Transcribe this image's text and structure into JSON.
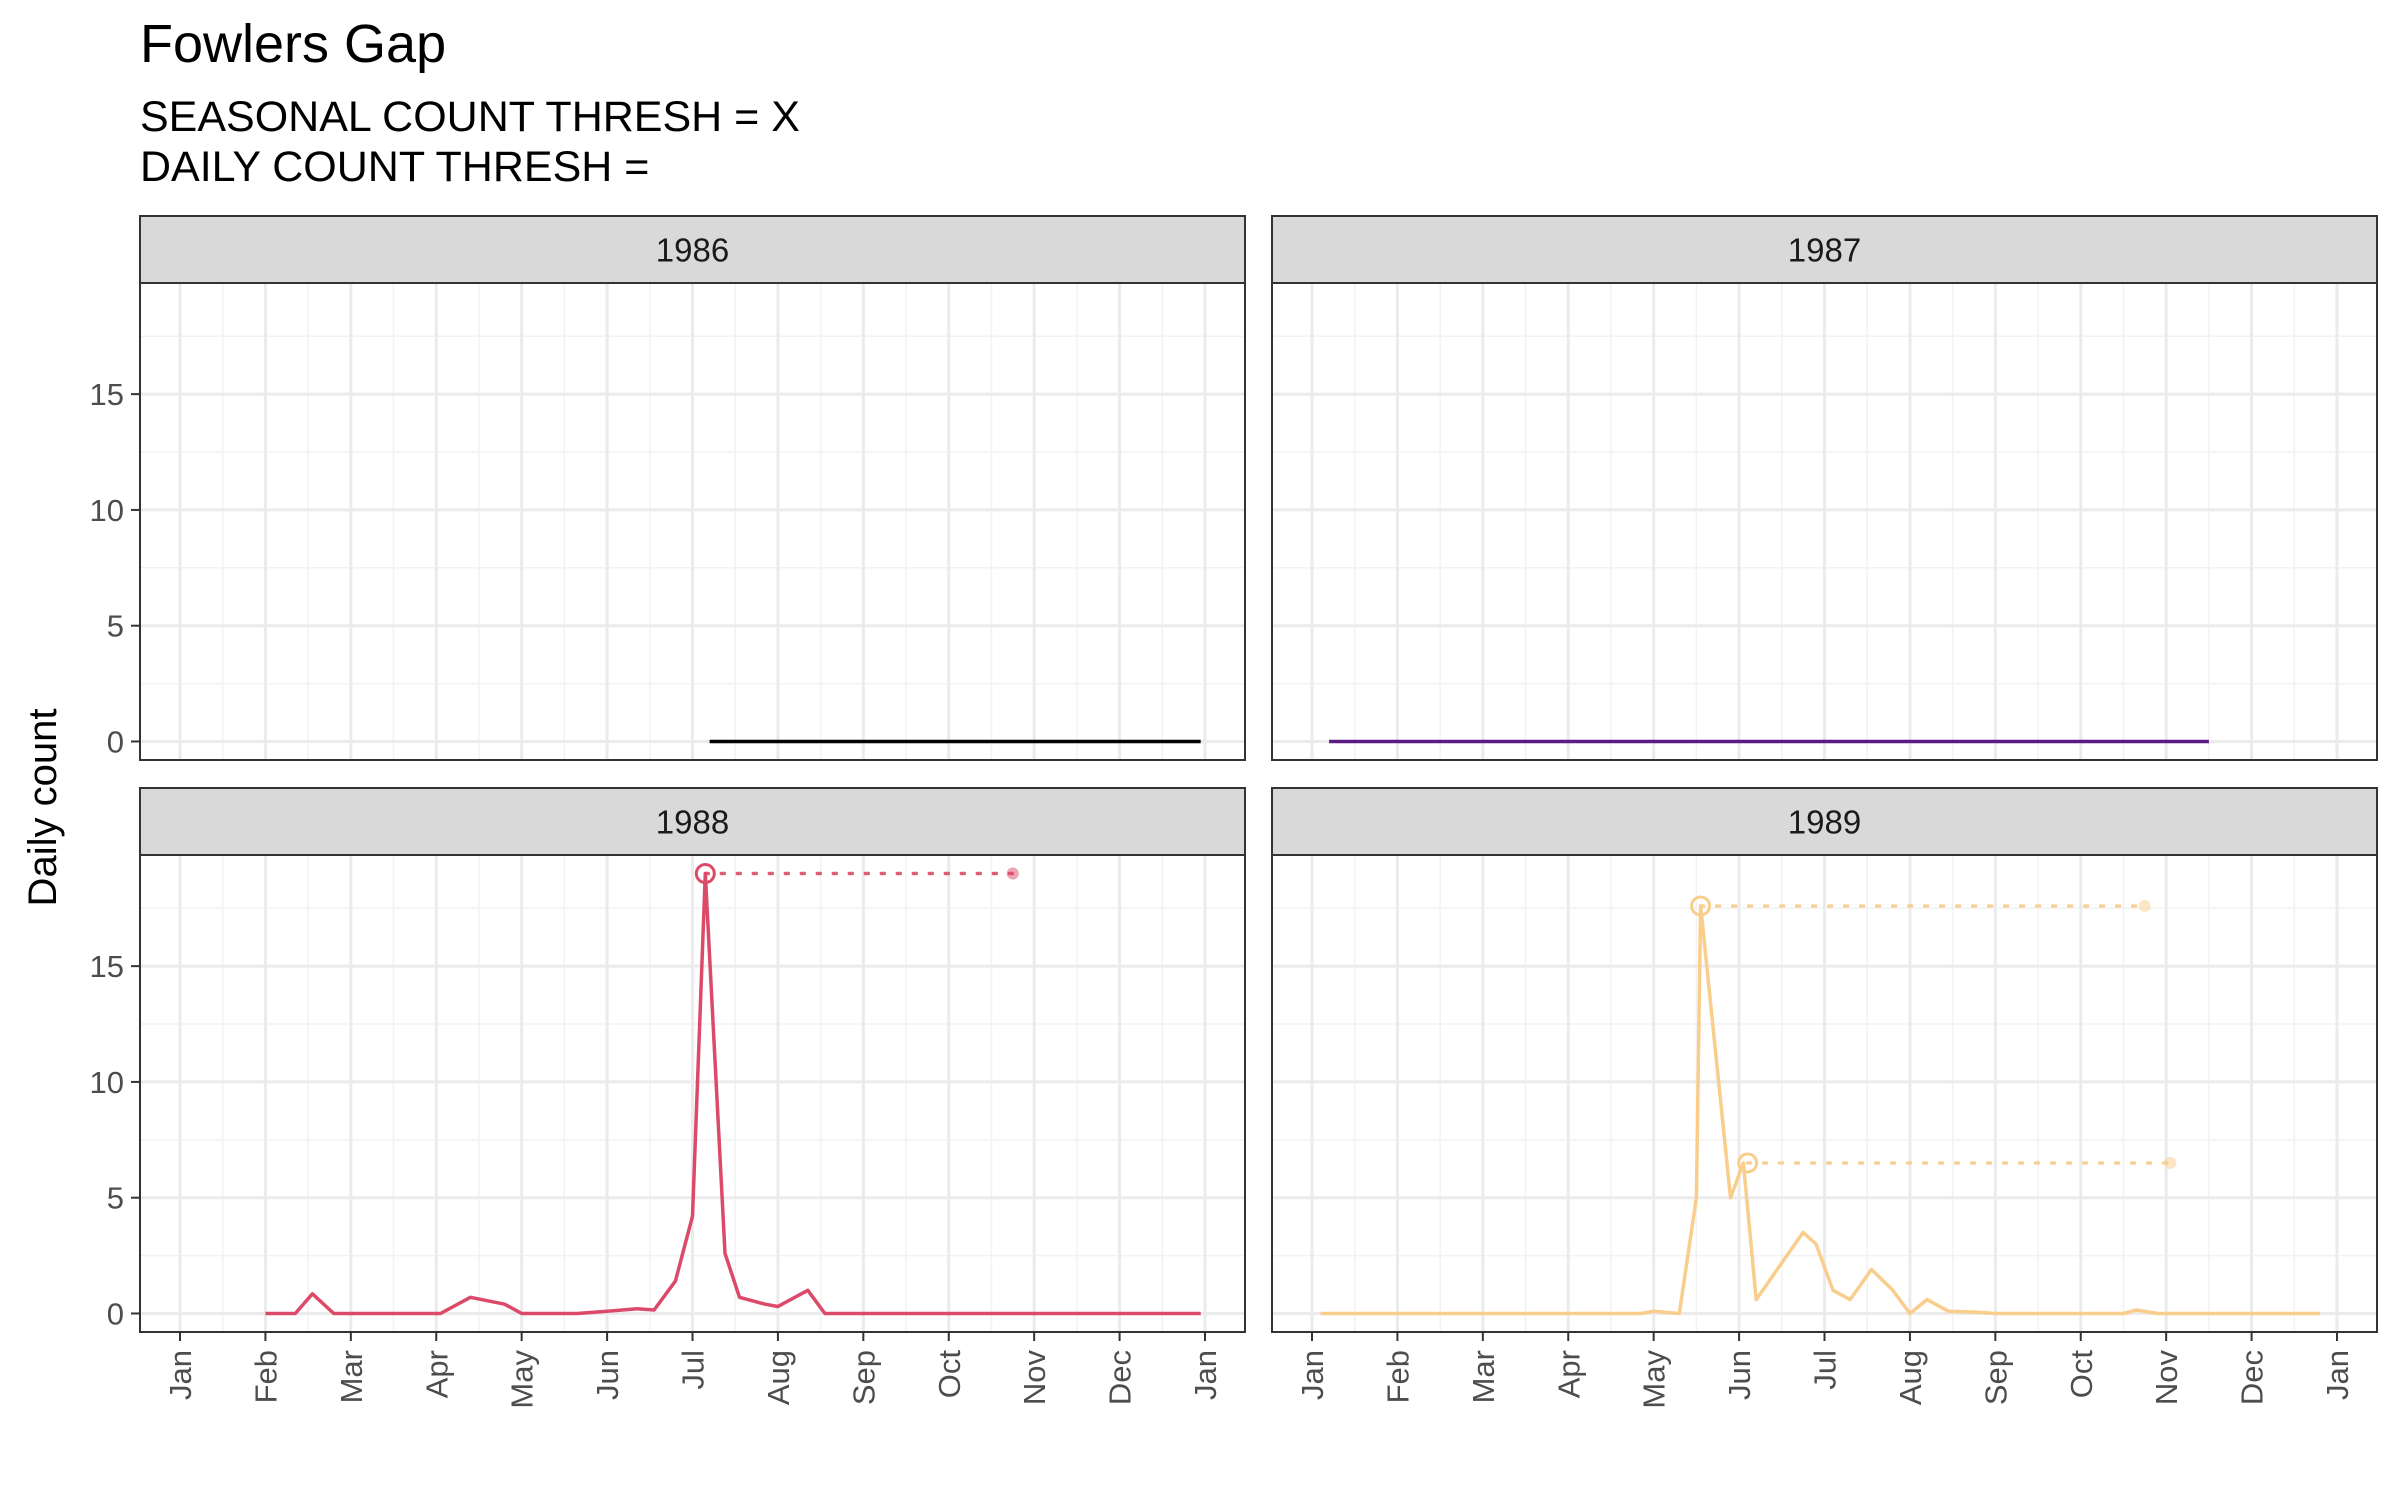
{
  "header": {
    "title": "Fowlers Gap",
    "subtitle_line1": "SEASONAL COUNT THRESH = X",
    "subtitle_line2": "DAILY COUNT THRESH ="
  },
  "chart_data": {
    "type": "line",
    "ylabel": "Daily count",
    "xlabel": "",
    "ylim": [
      -0.8,
      19.8
    ],
    "y_ticks": [
      0,
      5,
      10,
      15
    ],
    "x_ticks": [
      "Jan",
      "Feb",
      "Mar",
      "Apr",
      "May",
      "Jun",
      "Jul",
      "Aug",
      "Sep",
      "Oct",
      "Nov",
      "Dec",
      "Jan"
    ],
    "grid": true,
    "facets": [
      {
        "label": "1986",
        "color": "#000000",
        "points": [
          [
            6.2,
            0
          ],
          [
            11.95,
            0
          ]
        ],
        "peaks": []
      },
      {
        "label": "1987",
        "color": "#5b1a85",
        "points": [
          [
            0.2,
            0
          ],
          [
            10.5,
            0
          ]
        ],
        "peaks": []
      },
      {
        "label": "1988",
        "color": "#dc4a6a",
        "points": [
          [
            1.0,
            0
          ],
          [
            1.35,
            0
          ],
          [
            1.55,
            0.85
          ],
          [
            1.8,
            0
          ],
          [
            2.15,
            0
          ],
          [
            2.5,
            0
          ],
          [
            2.85,
            0
          ],
          [
            3.05,
            0
          ],
          [
            3.4,
            0.7
          ],
          [
            3.8,
            0.4
          ],
          [
            4.0,
            0
          ],
          [
            4.35,
            0
          ],
          [
            4.65,
            0
          ],
          [
            5.0,
            0.1
          ],
          [
            5.35,
            0.2
          ],
          [
            5.55,
            0.15
          ],
          [
            5.8,
            1.4
          ],
          [
            6.0,
            4.2
          ],
          [
            6.15,
            19.0
          ],
          [
            6.38,
            2.6
          ],
          [
            6.55,
            0.7
          ],
          [
            6.85,
            0.4
          ],
          [
            7.0,
            0.3
          ],
          [
            7.35,
            1.0
          ],
          [
            7.55,
            0
          ],
          [
            8.0,
            0
          ],
          [
            9.0,
            0
          ],
          [
            10.0,
            0
          ],
          [
            11.0,
            0
          ],
          [
            11.95,
            0
          ]
        ],
        "peaks": [
          {
            "x": 6.15,
            "y": 19.0,
            "end_x": 9.75
          }
        ]
      },
      {
        "label": "1989",
        "color": "#f9cd8c",
        "points": [
          [
            0.1,
            0
          ],
          [
            1.0,
            0
          ],
          [
            2.0,
            0
          ],
          [
            3.0,
            0
          ],
          [
            3.85,
            0
          ],
          [
            4.0,
            0.1
          ],
          [
            4.3,
            0
          ],
          [
            4.5,
            5.0
          ],
          [
            4.55,
            17.6
          ],
          [
            4.9,
            5.0
          ],
          [
            5.05,
            6.5
          ],
          [
            5.2,
            0.6
          ],
          [
            5.75,
            3.5
          ],
          [
            5.9,
            3.0
          ],
          [
            6.1,
            1.0
          ],
          [
            6.3,
            0.6
          ],
          [
            6.55,
            1.9
          ],
          [
            6.8,
            1.0
          ],
          [
            7.0,
            0
          ],
          [
            7.2,
            0.6
          ],
          [
            7.45,
            0.1
          ],
          [
            7.8,
            0.05
          ],
          [
            8.0,
            0
          ],
          [
            8.5,
            0
          ],
          [
            9.0,
            0
          ],
          [
            9.5,
            0
          ],
          [
            9.65,
            0.15
          ],
          [
            9.9,
            0
          ],
          [
            10.5,
            0
          ],
          [
            11.0,
            0
          ],
          [
            11.5,
            0
          ],
          [
            11.8,
            0
          ]
        ],
        "peaks": [
          {
            "x": 4.55,
            "y": 17.6,
            "end_x": 9.75
          },
          {
            "x": 5.1,
            "y": 6.5,
            "end_x": 10.05
          }
        ]
      }
    ]
  }
}
